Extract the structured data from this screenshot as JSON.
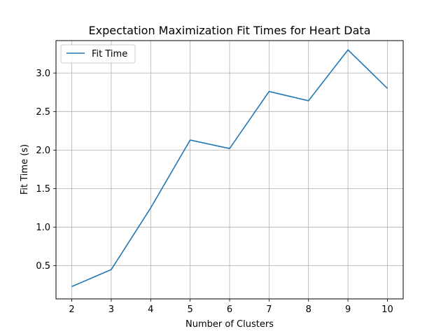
{
  "chart_data": {
    "type": "line",
    "title": "Expectation Maximization Fit Times for Heart Data",
    "xlabel": "Number of Clusters",
    "ylabel": "Fit Time (s)",
    "x": [
      2,
      3,
      4,
      5,
      6,
      7,
      8,
      9,
      10
    ],
    "xlim": [
      1.6,
      10.4
    ],
    "ylim": [
      0.07,
      3.42
    ],
    "xticks": [
      2,
      3,
      4,
      5,
      6,
      7,
      8,
      9,
      10
    ],
    "yticks": [
      0.5,
      1.0,
      1.5,
      2.0,
      2.5,
      3.0
    ],
    "ytick_labels": [
      "0.5",
      "1.0",
      "1.5",
      "2.0",
      "2.5",
      "3.0"
    ],
    "grid": true,
    "legend": "top-left",
    "series": [
      {
        "name": "Fit Time",
        "color": "#1f77b4",
        "values": [
          0.23,
          0.45,
          1.25,
          2.13,
          2.02,
          2.76,
          2.64,
          3.3,
          2.8
        ]
      }
    ]
  }
}
